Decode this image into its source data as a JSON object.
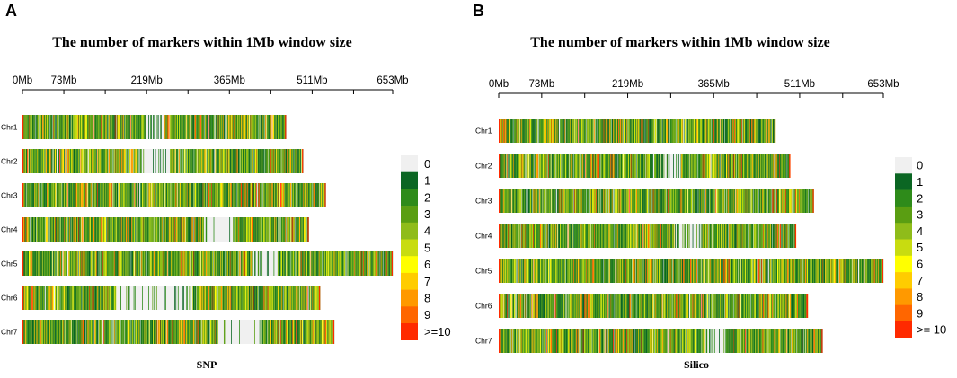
{
  "chart_data": [
    {
      "panel": "A",
      "type": "heatmap",
      "title": "The number of markers within 1Mb window size",
      "caption": "SNP",
      "axis_unit": "Mb",
      "axis_max_mb": 653,
      "ticks": [
        {
          "value": 0,
          "label": "0Mb"
        },
        {
          "value": 73,
          "label": "73Mb"
        },
        {
          "value": 219,
          "label": "219Mb"
        },
        {
          "value": 365,
          "label": "365Mb"
        },
        {
          "value": 511,
          "label": "511Mb"
        },
        {
          "value": 653,
          "label": "653Mb"
        }
      ],
      "chromosomes": [
        {
          "name": "Chr1",
          "length_mb": 465,
          "gaps": [
            [
              218,
              250
            ]
          ]
        },
        {
          "name": "Chr2",
          "length_mb": 495,
          "gaps": [
            [
              205,
              260
            ]
          ]
        },
        {
          "name": "Chr3",
          "length_mb": 535,
          "gaps": []
        },
        {
          "name": "Chr4",
          "length_mb": 505,
          "gaps": [
            [
              320,
              375
            ]
          ]
        },
        {
          "name": "Chr5",
          "length_mb": 653,
          "gaps": [
            [
              405,
              450
            ]
          ]
        },
        {
          "name": "Chr6",
          "length_mb": 525,
          "gaps": [
            [
              165,
              300
            ]
          ]
        },
        {
          "name": "Chr7",
          "length_mb": 550,
          "gaps": [
            [
              345,
              420
            ]
          ]
        }
      ],
      "legend": [
        "0",
        "1",
        "2",
        "3",
        "4",
        "5",
        "6",
        "7",
        "8",
        "9",
        ">=10"
      ]
    },
    {
      "panel": "B",
      "type": "heatmap",
      "title": "The number of markers within 1Mb window size",
      "caption": "Silico",
      "axis_unit": "Mb",
      "axis_max_mb": 653,
      "ticks": [
        {
          "value": 0,
          "label": "0Mb"
        },
        {
          "value": 73,
          "label": "73Mb"
        },
        {
          "value": 219,
          "label": "219Mb"
        },
        {
          "value": 365,
          "label": "365Mb"
        },
        {
          "value": 511,
          "label": "511Mb"
        },
        {
          "value": 653,
          "label": "653Mb"
        }
      ],
      "chromosomes": [
        {
          "name": "Chr1",
          "length_mb": 470,
          "gaps": []
        },
        {
          "name": "Chr2",
          "length_mb": 495,
          "gaps": [
            [
              275,
              310
            ]
          ]
        },
        {
          "name": "Chr3",
          "length_mb": 535,
          "gaps": []
        },
        {
          "name": "Chr4",
          "length_mb": 505,
          "gaps": [
            [
              300,
              345
            ]
          ]
        },
        {
          "name": "Chr5",
          "length_mb": 653,
          "gaps": []
        },
        {
          "name": "Chr6",
          "length_mb": 525,
          "gaps": []
        },
        {
          "name": "Chr7",
          "length_mb": 550,
          "gaps": [
            [
              350,
              385
            ]
          ]
        }
      ],
      "legend": [
        "0",
        "1",
        "2",
        "3",
        "4",
        "5",
        "6",
        "7",
        "8",
        "9",
        ">= 10"
      ]
    }
  ],
  "colors": {
    "scale": [
      "#f0f0f0",
      "#0b6623",
      "#2e8b1a",
      "#5a9e12",
      "#8fbc1a",
      "#c8dc10",
      "#ffff00",
      "#ffcc00",
      "#ff9900",
      "#ff6600",
      "#ff2a00"
    ]
  }
}
